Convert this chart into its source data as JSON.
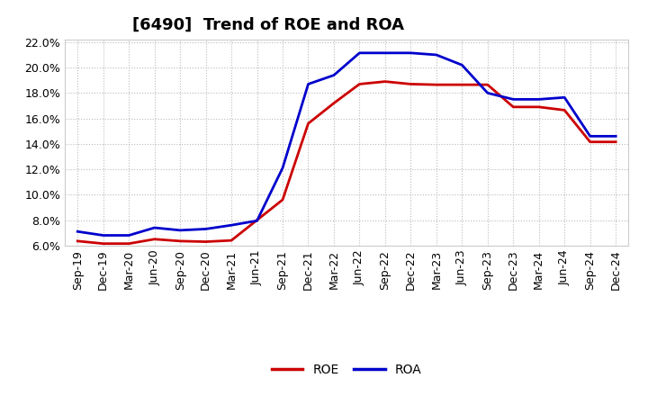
{
  "title": "[6490]  Trend of ROE and ROA",
  "ylim": [
    0.06,
    0.222
  ],
  "yticks": [
    0.06,
    0.08,
    0.1,
    0.12,
    0.14,
    0.16,
    0.18,
    0.2,
    0.22
  ],
  "ytick_labels": [
    "6.0%",
    "8.0%",
    "10.0%",
    "12.0%",
    "14.0%",
    "16.0%",
    "18.0%",
    "20.0%",
    "22.0%"
  ],
  "xtick_labels": [
    "Sep-19",
    "Dec-19",
    "Mar-20",
    "Jun-20",
    "Sep-20",
    "Dec-20",
    "Mar-21",
    "Jun-21",
    "Sep-21",
    "Dec-21",
    "Mar-22",
    "Jun-22",
    "Sep-22",
    "Dec-22",
    "Mar-23",
    "Jun-23",
    "Sep-23",
    "Dec-23",
    "Mar-24",
    "Jun-24",
    "Sep-24",
    "Dec-24"
  ],
  "ROE": [
    0.0635,
    0.0615,
    0.0615,
    0.065,
    0.0635,
    0.063,
    0.064,
    0.08,
    0.096,
    0.156,
    0.172,
    0.187,
    0.189,
    0.187,
    0.1865,
    0.1865,
    0.1865,
    0.169,
    0.169,
    0.1665,
    0.1415,
    0.1415
  ],
  "ROA": [
    0.071,
    0.068,
    0.068,
    0.074,
    0.072,
    0.073,
    0.076,
    0.0795,
    0.121,
    0.187,
    0.194,
    0.2115,
    0.2115,
    0.2115,
    0.21,
    0.202,
    0.18,
    0.175,
    0.175,
    0.1765,
    0.146,
    0.146
  ],
  "roe_color": "#cc0000",
  "roa_color": "#0000cc",
  "line_width": 2.0,
  "bg_color": "#ffffff",
  "plot_bg_color": "#ffffff",
  "grid_color": "#bbbbbb",
  "title_fontsize": 13,
  "tick_fontsize": 9,
  "legend_fontsize": 10
}
